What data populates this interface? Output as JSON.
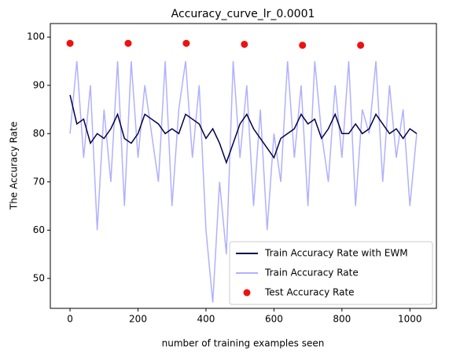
{
  "chart_data": {
    "type": "line",
    "title": "Accuracy_curve_lr_0.0001",
    "xlabel": "number of training examples seen",
    "ylabel": "The Accuracy Rate",
    "x": [
      0,
      20,
      40,
      60,
      80,
      100,
      120,
      140,
      160,
      180,
      200,
      220,
      240,
      260,
      280,
      300,
      320,
      340,
      360,
      380,
      400,
      420,
      440,
      460,
      480,
      500,
      520,
      540,
      560,
      580,
      600,
      620,
      640,
      660,
      680,
      700,
      720,
      740,
      760,
      780,
      800,
      820,
      840,
      860,
      880,
      900,
      920,
      940,
      960,
      980,
      1000,
      1020
    ],
    "series": [
      {
        "name": "Train Accuracy Rate with EWM",
        "color": "#00004d",
        "values": [
          88,
          82,
          83,
          78,
          80,
          79,
          81,
          84,
          79,
          78,
          80,
          84,
          83,
          82,
          80,
          81,
          80,
          84,
          83,
          82,
          79,
          81,
          78,
          74,
          78,
          82,
          84,
          81,
          79,
          77,
          75,
          79,
          80,
          81,
          84,
          82,
          83,
          79,
          81,
          84,
          80,
          80,
          82,
          80,
          81,
          84,
          82,
          80,
          81,
          79,
          81,
          80
        ]
      },
      {
        "name": "Train Accuracy Rate",
        "color": "#b0b0ff",
        "values": [
          80,
          95,
          75,
          90,
          60,
          85,
          70,
          95,
          65,
          95,
          75,
          90,
          80,
          70,
          95,
          65,
          85,
          95,
          75,
          90,
          60,
          45,
          70,
          55,
          95,
          75,
          90,
          65,
          85,
          60,
          80,
          70,
          95,
          75,
          90,
          65,
          95,
          80,
          70,
          90,
          75,
          95,
          65,
          85,
          80,
          95,
          70,
          90,
          75,
          85,
          65,
          80
        ]
      }
    ],
    "scatter": {
      "name": "Test Accuracy Rate",
      "color": "#ee1111",
      "x": [
        0,
        171,
        342,
        513,
        684,
        855
      ],
      "values": [
        98.7,
        98.7,
        98.7,
        98.5,
        98.3,
        98.3
      ]
    },
    "xlim": [
      -58,
      1078
    ],
    "xticks": [
      0,
      200,
      400,
      600,
      800,
      1000
    ],
    "ylim": [
      43.8,
      102.8
    ],
    "yticks": [
      50,
      60,
      70,
      80,
      90,
      100
    ],
    "legend": "lower right"
  }
}
